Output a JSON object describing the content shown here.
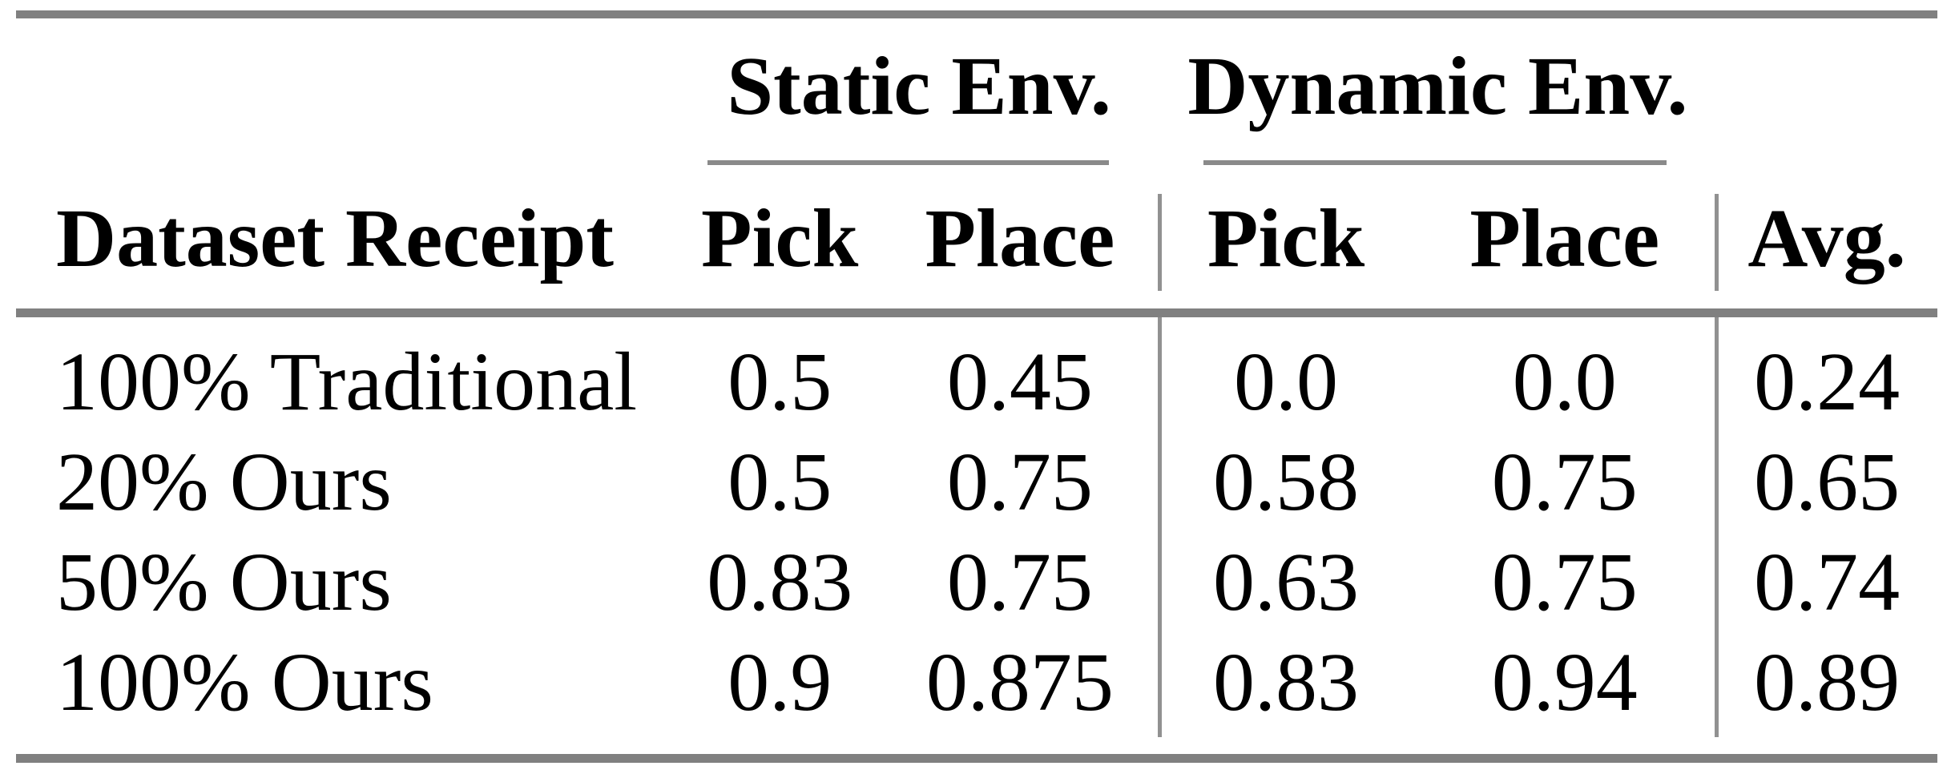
{
  "table": {
    "group_header": {
      "static": "Static Env.",
      "dynamic": "Dynamic Env."
    },
    "column_header": {
      "row_label": "Dataset Receipt",
      "static_pick": "Pick",
      "static_place": "Place",
      "dynamic_pick": "Pick",
      "dynamic_place": "Place",
      "avg": "Avg."
    },
    "rows": [
      {
        "label": "100% Traditional",
        "static_pick": "0.5",
        "static_place": "0.45",
        "dynamic_pick": "0.0",
        "dynamic_place": "0.0",
        "avg": "0.24"
      },
      {
        "label": "20% Ours",
        "static_pick": "0.5",
        "static_place": "0.75",
        "dynamic_pick": "0.58",
        "dynamic_place": "0.75",
        "avg": "0.65"
      },
      {
        "label": "50% Ours",
        "static_pick": "0.83",
        "static_place": "0.75",
        "dynamic_pick": "0.63",
        "dynamic_place": "0.75",
        "avg": "0.74"
      },
      {
        "label": "100% Ours",
        "static_pick": "0.9",
        "static_place": "0.875",
        "dynamic_pick": "0.83",
        "dynamic_place": "0.94",
        "avg": "0.89"
      }
    ]
  },
  "colors": {
    "rule_thick": "#808080",
    "rule_thin": "#8a8a8a",
    "vline": "#919191",
    "text": "#000000",
    "background": "#ffffff"
  },
  "chart_data": {
    "type": "table",
    "columns": [
      "Dataset Receipt",
      "Static Env. Pick",
      "Static Env. Place",
      "Dynamic Env. Pick",
      "Dynamic Env. Place",
      "Avg."
    ],
    "rows": [
      [
        "100% Traditional",
        0.5,
        0.45,
        0.0,
        0.0,
        0.24
      ],
      [
        "20% Ours",
        0.5,
        0.75,
        0.58,
        0.75,
        0.65
      ],
      [
        "50% Ours",
        0.83,
        0.75,
        0.63,
        0.75,
        0.74
      ],
      [
        "100% Ours",
        0.9,
        0.875,
        0.83,
        0.94,
        0.89
      ]
    ]
  }
}
